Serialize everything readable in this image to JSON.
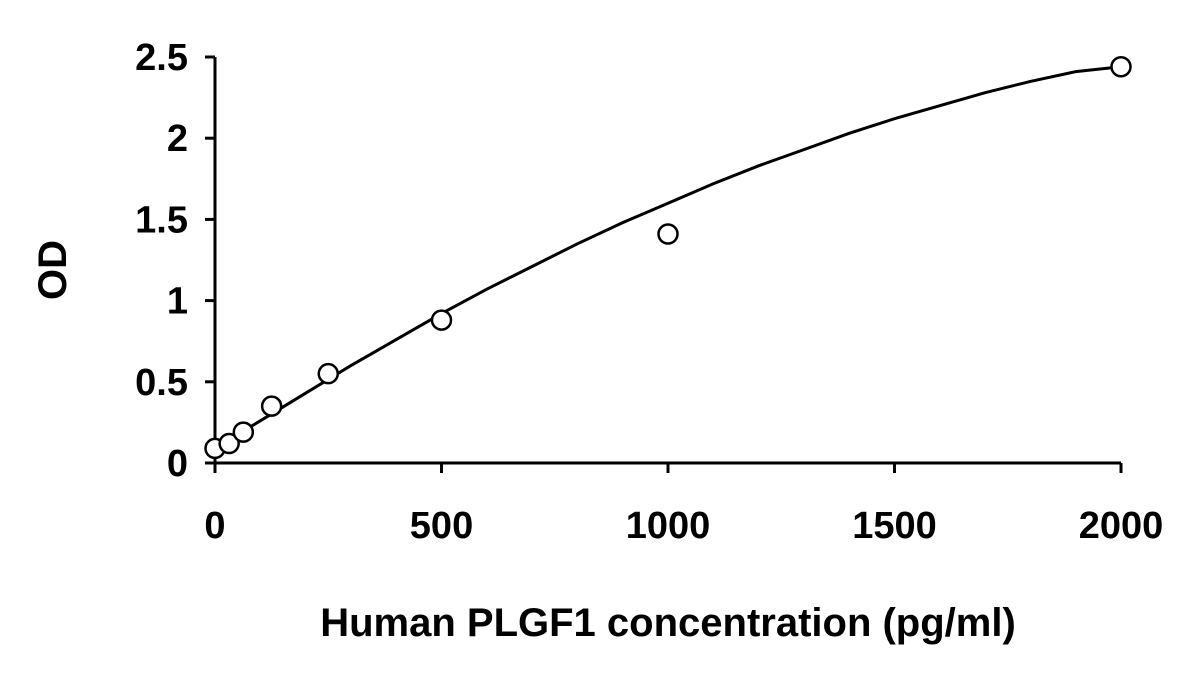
{
  "chart_data": {
    "type": "scatter",
    "title": "",
    "xlabel": "Human PLGF1 concentration (pg/ml)",
    "ylabel": "OD",
    "xlim": [
      0,
      2000
    ],
    "ylim": [
      0,
      2.5
    ],
    "x_ticks": [
      "0",
      "500",
      "1000",
      "1500",
      "2000"
    ],
    "y_ticks": [
      "0",
      "0.5",
      "1",
      "1.5",
      "2",
      "2.5"
    ],
    "x_tick_values": [
      0,
      500,
      1000,
      1500,
      2000
    ],
    "y_tick_values": [
      0,
      0.5,
      1,
      1.5,
      2,
      2.5
    ],
    "grid": false,
    "legend": "none",
    "series": [
      {
        "x": [
          0,
          31.25,
          62.5,
          125,
          250,
          500,
          1000,
          2000
        ],
        "y": [
          0.09,
          0.12,
          0.19,
          0.35,
          0.55,
          0.88,
          1.41,
          2.44
        ]
      }
    ],
    "fit_curve": {
      "x": [
        0,
        100,
        200,
        300,
        400,
        500,
        600,
        700,
        800,
        900,
        1000,
        1100,
        1200,
        1300,
        1400,
        1500,
        1600,
        1700,
        1800,
        1900,
        2000
      ],
      "y": [
        0.09,
        0.26,
        0.43,
        0.6,
        0.76,
        0.92,
        1.07,
        1.21,
        1.35,
        1.48,
        1.6,
        1.72,
        1.83,
        1.93,
        2.03,
        2.12,
        2.2,
        2.28,
        2.35,
        2.41,
        2.44
      ]
    },
    "colors": {
      "axis": "#000000",
      "marker_edge": "#000000",
      "marker_fill": "#ffffff",
      "line": "#000000"
    }
  }
}
